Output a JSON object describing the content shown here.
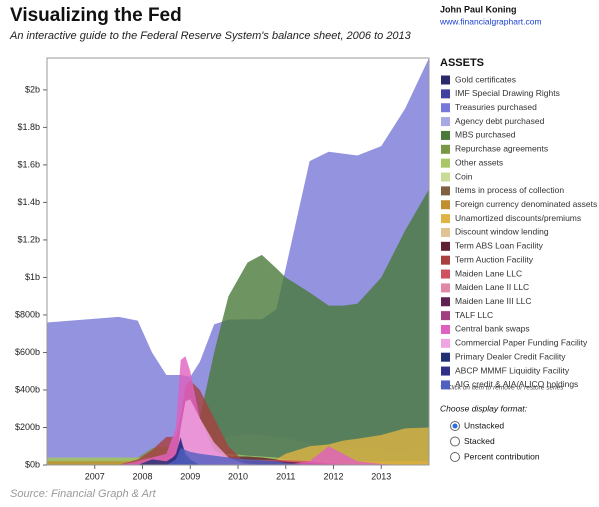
{
  "chart_data": {
    "type": "area",
    "title": "Visualizing the Fed",
    "subtitle": "An interactive guide to the Federal Reserve System's balance sheet, 2006 to 2013",
    "author": "John Paul Koning",
    "url": "www.financialgraphart.com",
    "source": "Source: Financial Graph & Art",
    "legend_title": "ASSETS",
    "legend_note": "** Click on item to remove or restore series",
    "display_format_label": "Choose display format:",
    "display_options": [
      "Unstacked",
      "Stacked",
      "Percent contribution"
    ],
    "selected_option": 0,
    "xlim": [
      2006,
      2014
    ],
    "xticks": [
      2007,
      2008,
      2009,
      2010,
      2011,
      2012,
      2013
    ],
    "ylim": [
      0,
      2170
    ],
    "yticks": [
      {
        "value": 0,
        "label": "$0b"
      },
      {
        "value": 200,
        "label": "$200b"
      },
      {
        "value": 400,
        "label": "$400b"
      },
      {
        "value": 600,
        "label": "$600b"
      },
      {
        "value": 800,
        "label": "$800b"
      },
      {
        "value": 1000,
        "label": "$1b"
      },
      {
        "value": 1200,
        "label": "$1.2b"
      },
      {
        "value": 1400,
        "label": "$1.4b"
      },
      {
        "value": 1600,
        "label": "$1.6b"
      },
      {
        "value": 1800,
        "label": "$1.8b"
      },
      {
        "value": 2000,
        "label": "$2b"
      }
    ],
    "x": [
      2006,
      2007,
      2007.5,
      2007.9,
      2008.2,
      2008.5,
      2008.7,
      2008.8,
      2008.9,
      2009,
      2009.2,
      2009.5,
      2009.8,
      2010.2,
      2010.5,
      2010.8,
      2011,
      2011.5,
      2011.9,
      2012.2,
      2012.5,
      2013,
      2013.5,
      2014
    ],
    "series": [
      {
        "name": "Gold certificates",
        "color": "#2a2a6a",
        "values": [
          11,
          11,
          11,
          11,
          11,
          11,
          11,
          11,
          11,
          11,
          11,
          11,
          11,
          11,
          11,
          11,
          11,
          11,
          11,
          11,
          11,
          11,
          11,
          11
        ]
      },
      {
        "name": "IMF Special Drawing Rights",
        "color": "#4040a0",
        "values": [
          2,
          2,
          2,
          2,
          2,
          2,
          2,
          2,
          2,
          2,
          5,
          5,
          5,
          5,
          5,
          5,
          5,
          5,
          5,
          5,
          5,
          5,
          5,
          5
        ]
      },
      {
        "name": "Treasuries purchased",
        "color": "#7878d8",
        "values": [
          760,
          780,
          790,
          770,
          600,
          480,
          480,
          480,
          475,
          470,
          550,
          750,
          775,
          777,
          777,
          830,
          1050,
          1620,
          1670,
          1660,
          1650,
          1700,
          1900,
          2170
        ]
      },
      {
        "name": "Agency debt purchased",
        "color": "#a8a8e4",
        "values": [
          0,
          0,
          0,
          0,
          0,
          0,
          0,
          0,
          0,
          20,
          60,
          110,
          150,
          165,
          160,
          150,
          145,
          115,
          100,
          90,
          85,
          75,
          60,
          55
        ]
      },
      {
        "name": "MBS purchased",
        "color": "#4a7a3a",
        "values": [
          0,
          0,
          0,
          0,
          0,
          0,
          0,
          0,
          0,
          0,
          250,
          600,
          900,
          1080,
          1120,
          1050,
          1000,
          920,
          850,
          850,
          860,
          1000,
          1250,
          1470
        ]
      },
      {
        "name": "Repurchase agreements",
        "color": "#789848",
        "values": [
          30,
          35,
          35,
          40,
          90,
          100,
          80,
          80,
          60,
          40,
          0,
          0,
          0,
          0,
          0,
          0,
          0,
          0,
          0,
          0,
          0,
          0,
          0,
          0
        ]
      },
      {
        "name": "Other assets",
        "color": "#a8c868",
        "values": [
          40,
          40,
          40,
          40,
          40,
          40,
          45,
          60,
          80,
          90,
          80,
          70,
          60,
          50,
          45,
          40,
          30,
          25,
          20,
          20,
          20,
          20,
          20,
          20
        ]
      },
      {
        "name": "Coin",
        "color": "#c8dc98",
        "values": [
          2,
          2,
          2,
          2,
          2,
          2,
          2,
          2,
          2,
          2,
          2,
          2,
          2,
          2,
          2,
          2,
          2,
          2,
          2,
          2,
          2,
          2,
          2,
          2
        ]
      },
      {
        "name": "Items in process of collection",
        "color": "#806040",
        "values": [
          1,
          1,
          1,
          1,
          1,
          1,
          1,
          1,
          1,
          1,
          1,
          1,
          1,
          1,
          1,
          1,
          1,
          1,
          1,
          1,
          1,
          1,
          1,
          1
        ]
      },
      {
        "name": "Foreign currency denominated assets",
        "color": "#c09030",
        "values": [
          20,
          20,
          20,
          20,
          20,
          20,
          20,
          20,
          20,
          20,
          20,
          20,
          20,
          20,
          20,
          20,
          20,
          20,
          20,
          20,
          20,
          20,
          20,
          20
        ]
      },
      {
        "name": "Unamortized discounts/premiums",
        "color": "#e0b444",
        "values": [
          0,
          0,
          0,
          0,
          0,
          0,
          0,
          0,
          0,
          0,
          5,
          10,
          15,
          20,
          25,
          30,
          60,
          100,
          110,
          130,
          140,
          160,
          195,
          200
        ]
      },
      {
        "name": "Discount window lending",
        "color": "#e0c494",
        "values": [
          0,
          0,
          0,
          0,
          10,
          20,
          100,
          110,
          95,
          80,
          50,
          30,
          20,
          10,
          0,
          0,
          0,
          0,
          0,
          0,
          0,
          0,
          0,
          0
        ]
      },
      {
        "name": "Term ABS Loan Facility",
        "color": "#602030",
        "values": [
          0,
          0,
          0,
          0,
          0,
          0,
          0,
          0,
          0,
          0,
          0,
          30,
          45,
          45,
          40,
          30,
          20,
          10,
          5,
          0,
          0,
          0,
          0,
          0
        ]
      },
      {
        "name": "Term Auction Facility",
        "color": "#a84040",
        "values": [
          0,
          0,
          0,
          30,
          80,
          150,
          150,
          260,
          420,
          450,
          400,
          250,
          100,
          0,
          0,
          0,
          0,
          0,
          0,
          0,
          0,
          0,
          0,
          0
        ]
      },
      {
        "name": "Maiden Lane LLC",
        "color": "#d05060",
        "values": [
          0,
          0,
          0,
          0,
          30,
          30,
          29,
          29,
          27,
          27,
          26,
          26,
          27,
          27,
          27,
          26,
          26,
          22,
          10,
          5,
          2,
          2,
          2,
          2
        ]
      },
      {
        "name": "Maiden Lane II LLC",
        "color": "#e088a4",
        "values": [
          0,
          0,
          0,
          0,
          0,
          0,
          0,
          0,
          20,
          20,
          18,
          16,
          15,
          15,
          15,
          12,
          10,
          5,
          0,
          0,
          0,
          0,
          0,
          0
        ]
      },
      {
        "name": "Maiden Lane III LLC",
        "color": "#602050",
        "values": [
          0,
          0,
          0,
          0,
          0,
          0,
          0,
          0,
          25,
          27,
          25,
          22,
          22,
          22,
          22,
          20,
          18,
          10,
          0,
          0,
          0,
          0,
          0,
          0
        ]
      },
      {
        "name": "TALF LLC",
        "color": "#a04080",
        "values": [
          0,
          0,
          0,
          0,
          0,
          0,
          0,
          0,
          0,
          0,
          0,
          0,
          1,
          1,
          1,
          1,
          1,
          1,
          1,
          0,
          0,
          0,
          0,
          0
        ]
      },
      {
        "name": "Central bank swaps",
        "color": "#e060c0",
        "values": [
          0,
          0,
          0,
          20,
          40,
          60,
          200,
          560,
          580,
          500,
          250,
          80,
          30,
          10,
          0,
          0,
          0,
          20,
          100,
          60,
          20,
          5,
          0,
          0
        ]
      },
      {
        "name": "Commercial Paper Funding Facility",
        "color": "#f0a4e4",
        "values": [
          0,
          0,
          0,
          0,
          0,
          0,
          0,
          200,
          340,
          350,
          250,
          120,
          40,
          0,
          0,
          0,
          0,
          0,
          0,
          0,
          0,
          0,
          0,
          0
        ]
      },
      {
        "name": "Primary Dealer Credit Facility",
        "color": "#203070",
        "values": [
          0,
          0,
          0,
          0,
          30,
          20,
          50,
          140,
          60,
          30,
          0,
          0,
          0,
          0,
          0,
          0,
          0,
          0,
          0,
          0,
          0,
          0,
          0,
          0
        ]
      },
      {
        "name": "ABCP MMMF Liquidity Facility",
        "color": "#303088",
        "values": [
          0,
          0,
          0,
          0,
          0,
          0,
          60,
          150,
          20,
          10,
          0,
          0,
          0,
          0,
          0,
          0,
          0,
          0,
          0,
          0,
          0,
          0,
          0,
          0
        ]
      },
      {
        "name": "AIG credit & AIA/ALICO holdings",
        "color": "#5060c0",
        "values": [
          0,
          0,
          0,
          0,
          0,
          0,
          30,
          90,
          80,
          70,
          60,
          50,
          40,
          30,
          25,
          20,
          10,
          0,
          0,
          0,
          0,
          0,
          0,
          0
        ]
      }
    ]
  }
}
